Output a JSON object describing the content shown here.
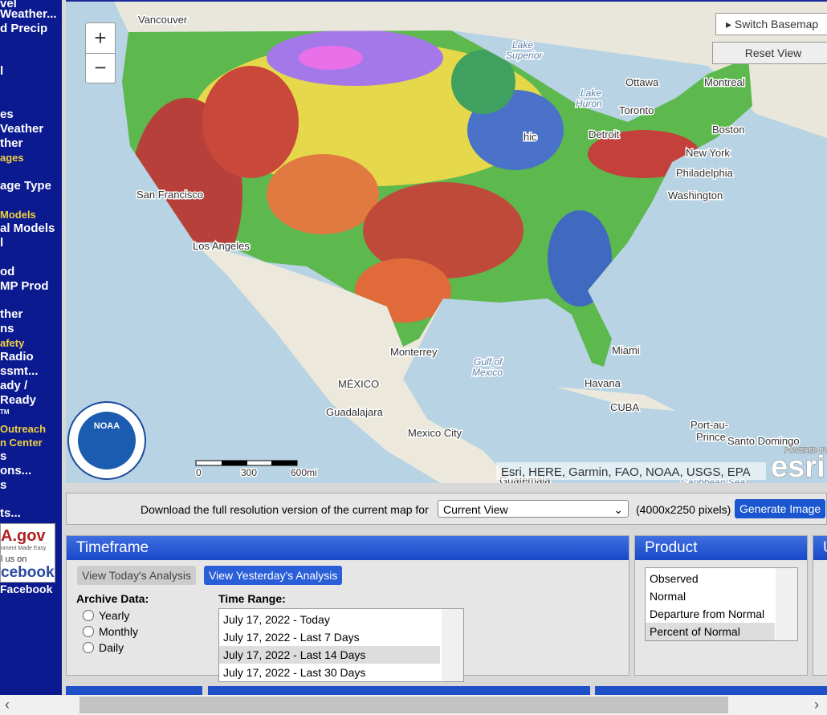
{
  "sidebar": {
    "links": [
      "vel",
      "Weather...",
      "d Precip",
      "l",
      "es",
      "Veather",
      "ther",
      "ages",
      "age Type",
      "Models",
      "al Models",
      "l",
      "od",
      "MP Prod",
      "ther",
      "ns",
      "afety",
      "Radio",
      "ssmt...",
      "ady /",
      "Ready",
      "TM",
      "Outreach",
      "n Center",
      "s",
      "ons...",
      "s",
      "ts..."
    ],
    "badge": {
      "line1": "A.gov",
      "line2": "nment Made Easy",
      "line3": "l us on",
      "line4": "cebook"
    },
    "facebook": "Facebook"
  },
  "map": {
    "controls": {
      "zoom_in": "+",
      "zoom_out": "−",
      "switch_basemap": "Switch Basemap",
      "reset_view": "Reset View"
    },
    "labels": [
      "Vancouver",
      "Lake",
      "Superior",
      "Ottawa",
      "Montreal",
      "Lake",
      "Huron",
      "Toronto",
      "Detroit",
      "Boston",
      "hic",
      "New York",
      "Philadelphia",
      "Washington",
      "San Francisco",
      "Los Angeles",
      "Monterrey",
      "Gulf of",
      "Mexico",
      "Miami",
      "MÉXICO",
      "Havana",
      "CUBA",
      "Guadalajara",
      "Mexico City",
      "Port-au-",
      "Prince",
      "Santo Domingo",
      "Guatemala",
      "Caribbean Sea"
    ],
    "scale": [
      "0",
      "300",
      "600mi"
    ],
    "attribution": "Esri, HERE, Garmin, FAO, NOAA, USGS, EPA",
    "esri_logo": {
      "powered": "POWERED BY",
      "name": "esri"
    },
    "noaa_logo": "NOAA"
  },
  "download": {
    "text": "Download the full resolution version of the current map for",
    "select": "Current View",
    "size": "(4000x2250 pixels)",
    "button": "Generate Image"
  },
  "timeframe": {
    "title": "Timeframe",
    "today_button": "View Today's Analysis",
    "yesterday_button": "View Yesterday's Analysis",
    "archive_label": "Archive Data:",
    "archive_options": [
      "Yearly",
      "Monthly",
      "Daily"
    ],
    "range_label": "Time Range:",
    "ranges": [
      "July 17, 2022 - Today",
      "July 17, 2022 - Last 7 Days",
      "July 17, 2022 - Last 14 Days",
      "July 17, 2022 - Last 30 Days"
    ]
  },
  "product": {
    "title": "Product",
    "options": [
      "Observed",
      "Normal",
      "Departure from Normal",
      "Percent of Normal"
    ]
  },
  "third_panel": {
    "title": "U"
  }
}
